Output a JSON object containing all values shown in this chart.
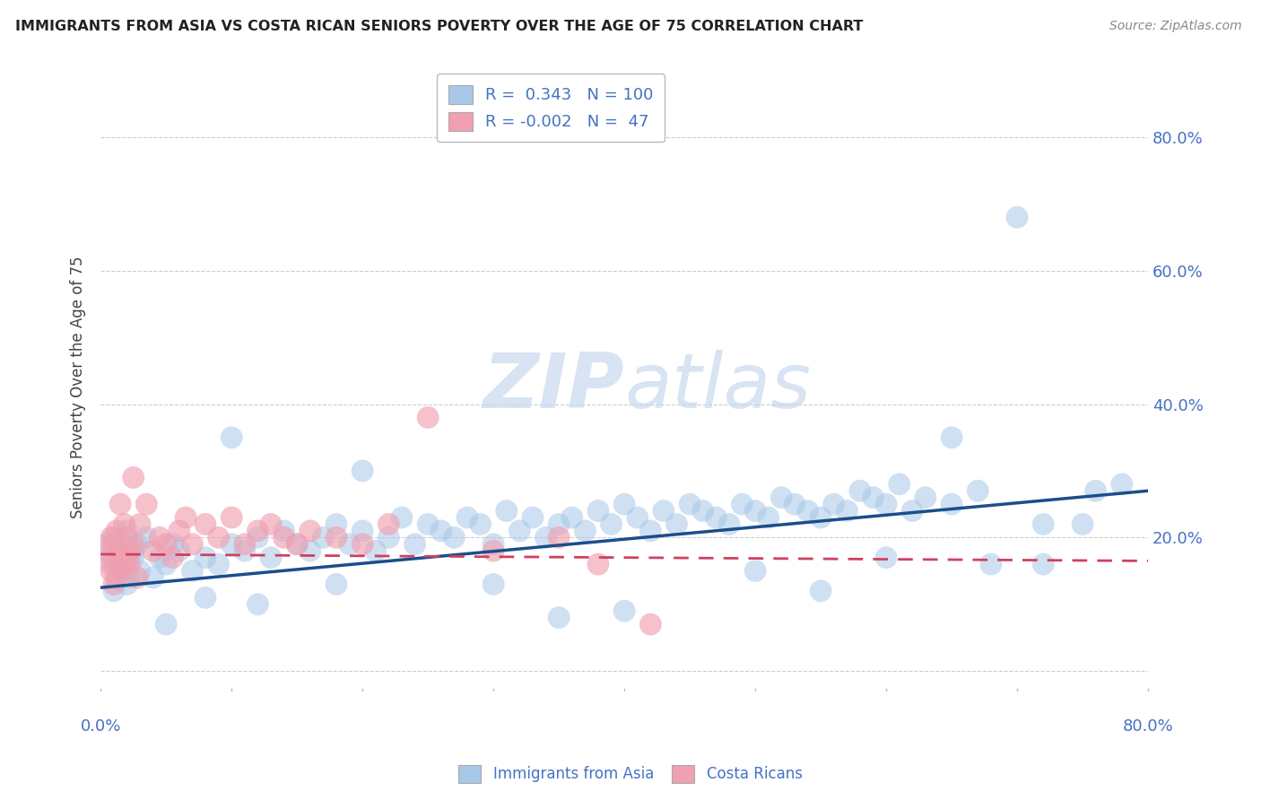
{
  "title": "IMMIGRANTS FROM ASIA VS COSTA RICAN SENIORS POVERTY OVER THE AGE OF 75 CORRELATION CHART",
  "source": "Source: ZipAtlas.com",
  "ylabel": "Seniors Poverty Over the Age of 75",
  "xlim": [
    0.0,
    0.8
  ],
  "ylim": [
    -0.03,
    0.88
  ],
  "yticks": [
    0.0,
    0.2,
    0.4,
    0.6,
    0.8
  ],
  "right_ytick_labels": [
    "",
    "20.0%",
    "40.0%",
    "60.0%",
    "80.0%"
  ],
  "blue_R": 0.343,
  "blue_N": 100,
  "pink_R": -0.002,
  "pink_N": 47,
  "blue_color": "#A8C8E8",
  "pink_color": "#F0A0B0",
  "blue_line_color": "#1A4E8C",
  "pink_line_color": "#D04060",
  "watermark_zip": "ZIP",
  "watermark_atlas": "atlas",
  "background_color": "#FFFFFF",
  "grid_color": "#CCCCCC",
  "blue_scatter_x": [
    0.005,
    0.008,
    0.01,
    0.012,
    0.015,
    0.018,
    0.02,
    0.022,
    0.025,
    0.028,
    0.01,
    0.015,
    0.02,
    0.025,
    0.03,
    0.035,
    0.04,
    0.045,
    0.05,
    0.055,
    0.06,
    0.07,
    0.08,
    0.09,
    0.1,
    0.11,
    0.12,
    0.13,
    0.14,
    0.15,
    0.16,
    0.17,
    0.18,
    0.19,
    0.2,
    0.21,
    0.22,
    0.23,
    0.24,
    0.25,
    0.26,
    0.27,
    0.28,
    0.29,
    0.3,
    0.31,
    0.32,
    0.33,
    0.34,
    0.35,
    0.36,
    0.37,
    0.38,
    0.39,
    0.4,
    0.41,
    0.42,
    0.43,
    0.44,
    0.45,
    0.46,
    0.47,
    0.48,
    0.49,
    0.5,
    0.51,
    0.52,
    0.53,
    0.54,
    0.55,
    0.56,
    0.57,
    0.58,
    0.59,
    0.6,
    0.61,
    0.62,
    0.63,
    0.65,
    0.67,
    0.1,
    0.2,
    0.3,
    0.4,
    0.5,
    0.6,
    0.65,
    0.7,
    0.72,
    0.75,
    0.05,
    0.08,
    0.12,
    0.18,
    0.35,
    0.55,
    0.68,
    0.72,
    0.76,
    0.78
  ],
  "blue_scatter_y": [
    0.19,
    0.17,
    0.2,
    0.16,
    0.18,
    0.15,
    0.21,
    0.14,
    0.17,
    0.19,
    0.12,
    0.16,
    0.13,
    0.18,
    0.15,
    0.2,
    0.14,
    0.17,
    0.16,
    0.19,
    0.18,
    0.15,
    0.17,
    0.16,
    0.19,
    0.18,
    0.2,
    0.17,
    0.21,
    0.19,
    0.18,
    0.2,
    0.22,
    0.19,
    0.21,
    0.18,
    0.2,
    0.23,
    0.19,
    0.22,
    0.21,
    0.2,
    0.23,
    0.22,
    0.19,
    0.24,
    0.21,
    0.23,
    0.2,
    0.22,
    0.23,
    0.21,
    0.24,
    0.22,
    0.25,
    0.23,
    0.21,
    0.24,
    0.22,
    0.25,
    0.24,
    0.23,
    0.22,
    0.25,
    0.24,
    0.23,
    0.26,
    0.25,
    0.24,
    0.23,
    0.25,
    0.24,
    0.27,
    0.26,
    0.25,
    0.28,
    0.24,
    0.26,
    0.25,
    0.27,
    0.35,
    0.3,
    0.13,
    0.09,
    0.15,
    0.17,
    0.35,
    0.68,
    0.16,
    0.22,
    0.07,
    0.11,
    0.1,
    0.13,
    0.08,
    0.12,
    0.16,
    0.22,
    0.27,
    0.28
  ],
  "pink_scatter_x": [
    0.005,
    0.008,
    0.01,
    0.012,
    0.015,
    0.008,
    0.012,
    0.018,
    0.022,
    0.015,
    0.01,
    0.02,
    0.025,
    0.018,
    0.012,
    0.008,
    0.015,
    0.022,
    0.028,
    0.02,
    0.025,
    0.03,
    0.035,
    0.04,
    0.045,
    0.05,
    0.055,
    0.06,
    0.065,
    0.07,
    0.08,
    0.09,
    0.1,
    0.11,
    0.12,
    0.13,
    0.14,
    0.15,
    0.16,
    0.18,
    0.2,
    0.22,
    0.25,
    0.3,
    0.35,
    0.38,
    0.42
  ],
  "pink_scatter_y": [
    0.18,
    0.16,
    0.19,
    0.17,
    0.15,
    0.2,
    0.14,
    0.22,
    0.16,
    0.18,
    0.13,
    0.17,
    0.19,
    0.16,
    0.21,
    0.15,
    0.25,
    0.18,
    0.14,
    0.2,
    0.29,
    0.22,
    0.25,
    0.18,
    0.2,
    0.19,
    0.17,
    0.21,
    0.23,
    0.19,
    0.22,
    0.2,
    0.23,
    0.19,
    0.21,
    0.22,
    0.2,
    0.19,
    0.21,
    0.2,
    0.19,
    0.22,
    0.38,
    0.18,
    0.2,
    0.16,
    0.07
  ],
  "blue_line_x0": 0.0,
  "blue_line_y0": 0.125,
  "blue_line_x1": 0.8,
  "blue_line_y1": 0.27,
  "pink_line_x0": 0.0,
  "pink_line_y0": 0.175,
  "pink_line_x1": 0.8,
  "pink_line_y1": 0.165
}
